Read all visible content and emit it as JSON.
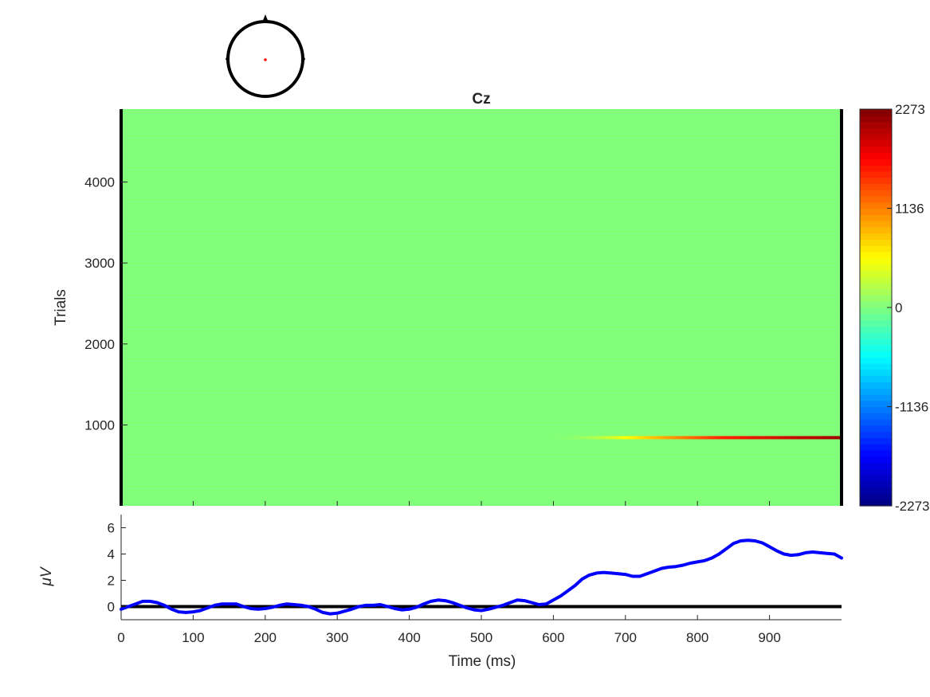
{
  "chart_data": [
    {
      "type": "heatmap",
      "title": "Cz",
      "ylabel": "Trials",
      "xlim": [
        0,
        1000
      ],
      "ylim": [
        1,
        4900
      ],
      "yticks": [
        1000,
        2000,
        3000,
        4000
      ],
      "ytick_labels": [
        "1000",
        "2000",
        "3000",
        "4000"
      ],
      "colormap": "jet",
      "background_value": 0,
      "feature": {
        "trial": 843,
        "x_start": 590,
        "x_peak_start": 700,
        "x_end": 1000,
        "values": [
          0,
          1136,
          2273
        ]
      },
      "colorbar": {
        "clim": [
          -2273,
          2273
        ],
        "tick_values": [
          2273,
          1136,
          0,
          -1136,
          -2273
        ],
        "tick_labels": [
          "2273",
          "1136",
          "0",
          "-1136",
          "-2273"
        ]
      },
      "head": {
        "type": "topoplot",
        "electrode": "Cz",
        "marker_color": "#ff0000"
      }
    },
    {
      "type": "line",
      "xlabel": "Time (ms)",
      "ylabel": "μV",
      "xlim": [
        0,
        1000
      ],
      "ylim": [
        -1,
        7
      ],
      "xticks": [
        0,
        100,
        200,
        300,
        400,
        500,
        600,
        700,
        800,
        900
      ],
      "xtick_labels": [
        "0",
        "100",
        "200",
        "300",
        "400",
        "500",
        "600",
        "700",
        "800",
        "900"
      ],
      "yticks": [
        0,
        2,
        4,
        6
      ],
      "ytick_labels": [
        "0",
        "2",
        "4",
        "6"
      ],
      "series": [
        {
          "color": "#0000ff",
          "x": [
            0,
            10,
            20,
            30,
            40,
            50,
            60,
            70,
            80,
            90,
            100,
            110,
            120,
            130,
            140,
            150,
            160,
            170,
            180,
            190,
            200,
            210,
            220,
            230,
            240,
            250,
            260,
            270,
            280,
            290,
            300,
            310,
            320,
            330,
            340,
            350,
            360,
            370,
            380,
            390,
            400,
            410,
            420,
            430,
            440,
            450,
            460,
            470,
            480,
            490,
            500,
            510,
            520,
            530,
            540,
            550,
            560,
            570,
            580,
            590,
            600,
            610,
            620,
            630,
            640,
            650,
            660,
            670,
            680,
            690,
            700,
            710,
            720,
            730,
            740,
            750,
            760,
            770,
            780,
            790,
            800,
            810,
            820,
            830,
            840,
            850,
            860,
            870,
            880,
            890,
            900,
            910,
            920,
            930,
            940,
            950,
            960,
            970,
            980,
            990,
            1000
          ],
          "y": [
            -0.2,
            0.0,
            0.2,
            0.4,
            0.4,
            0.3,
            0.1,
            -0.2,
            -0.4,
            -0.45,
            -0.4,
            -0.3,
            -0.1,
            0.1,
            0.2,
            0.2,
            0.2,
            0.0,
            -0.15,
            -0.2,
            -0.15,
            -0.05,
            0.1,
            0.2,
            0.15,
            0.1,
            0.0,
            -0.2,
            -0.45,
            -0.55,
            -0.5,
            -0.35,
            -0.2,
            0.0,
            0.1,
            0.1,
            0.15,
            0.0,
            -0.15,
            -0.25,
            -0.2,
            -0.05,
            0.2,
            0.4,
            0.5,
            0.45,
            0.3,
            0.1,
            -0.1,
            -0.25,
            -0.3,
            -0.2,
            -0.05,
            0.1,
            0.3,
            0.5,
            0.45,
            0.3,
            0.15,
            0.2,
            0.5,
            0.8,
            1.2,
            1.6,
            2.1,
            2.4,
            2.55,
            2.6,
            2.55,
            2.5,
            2.45,
            2.3,
            2.3,
            2.5,
            2.7,
            2.9,
            3.0,
            3.05,
            3.15,
            3.3,
            3.4,
            3.5,
            3.7,
            4.0,
            4.4,
            4.8,
            5.0,
            5.05,
            5.0,
            4.85,
            4.55,
            4.25,
            4.0,
            3.9,
            3.95,
            4.1,
            4.15,
            4.1,
            4.05,
            4.0,
            3.7
          ]
        }
      ]
    }
  ],
  "colors": {
    "axis": "#262626",
    "frame": "#000000",
    "series_line": "#0000ff",
    "zero_line": "#000000"
  }
}
